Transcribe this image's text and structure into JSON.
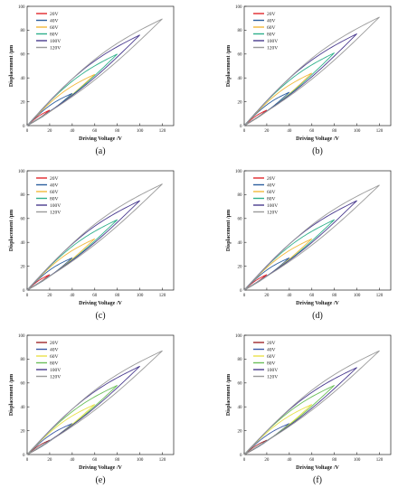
{
  "chart_data": [
    {
      "type": "line",
      "caption": "(a)",
      "xlabel": "Driving Voltage /V",
      "ylabel": "Displacement /µm",
      "xlim": [
        0,
        130
      ],
      "ylim": [
        0,
        100
      ],
      "xticks": [
        0,
        20,
        40,
        60,
        80,
        100,
        120
      ],
      "yticks": [
        0,
        20,
        40,
        60,
        80,
        100
      ],
      "legend_position": "top-left",
      "series": [
        {
          "name": "20V",
          "color": "#e0262b",
          "vmax": 20,
          "dmax": 13,
          "loop": 0.1
        },
        {
          "name": "40V",
          "color": "#2b5e9e",
          "vmax": 40,
          "dmax": 27,
          "loop": 0.12
        },
        {
          "name": "60V",
          "color": "#f2b93a",
          "vmax": 60,
          "dmax": 43,
          "loop": 0.12
        },
        {
          "name": "80V",
          "color": "#2fb08b",
          "vmax": 80,
          "dmax": 60,
          "loop": 0.12
        },
        {
          "name": "100V",
          "color": "#4a3b8f",
          "vmax": 100,
          "dmax": 76,
          "loop": 0.12
        },
        {
          "name": "120V",
          "color": "#9a9a9a",
          "vmax": 120,
          "dmax": 89.5,
          "loop": 0.12
        }
      ]
    },
    {
      "type": "line",
      "caption": "(b)",
      "xlabel": "Driving Voltage /V",
      "ylabel": "Displacement /µm",
      "xlim": [
        0,
        130
      ],
      "ylim": [
        0,
        100
      ],
      "xticks": [
        0,
        20,
        40,
        60,
        80,
        100,
        120
      ],
      "yticks": [
        0,
        20,
        40,
        60,
        80,
        100
      ],
      "legend_position": "top-left",
      "series": [
        {
          "name": "20V",
          "color": "#e0262b",
          "vmax": 20,
          "dmax": 13,
          "loop": 0.1
        },
        {
          "name": "40V",
          "color": "#2b5e9e",
          "vmax": 40,
          "dmax": 28,
          "loop": 0.12
        },
        {
          "name": "60V",
          "color": "#f2b93a",
          "vmax": 60,
          "dmax": 44,
          "loop": 0.12
        },
        {
          "name": "80V",
          "color": "#2fb08b",
          "vmax": 80,
          "dmax": 61,
          "loop": 0.12
        },
        {
          "name": "100V",
          "color": "#4a3b8f",
          "vmax": 100,
          "dmax": 77,
          "loop": 0.12
        },
        {
          "name": "120V",
          "color": "#9a9a9a",
          "vmax": 120,
          "dmax": 91,
          "loop": 0.12
        }
      ]
    },
    {
      "type": "line",
      "caption": "(c)",
      "xlabel": "Driving Voltage /V",
      "ylabel": "Displacement /µm",
      "xlim": [
        0,
        130
      ],
      "ylim": [
        0,
        100
      ],
      "xticks": [
        0,
        20,
        40,
        60,
        80,
        100,
        120
      ],
      "yticks": [
        0,
        20,
        40,
        60,
        80,
        100
      ],
      "legend_position": "top-left",
      "series": [
        {
          "name": "20V",
          "color": "#e0262b",
          "vmax": 20,
          "dmax": 13,
          "loop": 0.1
        },
        {
          "name": "40V",
          "color": "#2b5e9e",
          "vmax": 40,
          "dmax": 27,
          "loop": 0.12
        },
        {
          "name": "60V",
          "color": "#f2b93a",
          "vmax": 60,
          "dmax": 43,
          "loop": 0.12
        },
        {
          "name": "80V",
          "color": "#2fb08b",
          "vmax": 80,
          "dmax": 59,
          "loop": 0.12
        },
        {
          "name": "100V",
          "color": "#4a3b8f",
          "vmax": 100,
          "dmax": 75,
          "loop": 0.12
        },
        {
          "name": "120V",
          "color": "#9a9a9a",
          "vmax": 120,
          "dmax": 89,
          "loop": 0.12
        }
      ]
    },
    {
      "type": "line",
      "caption": "(d)",
      "xlabel": "Driving Voltage /V",
      "ylabel": "Displacement /µm",
      "xlim": [
        0,
        130
      ],
      "ylim": [
        0,
        100
      ],
      "xticks": [
        0,
        20,
        40,
        60,
        80,
        100,
        120
      ],
      "yticks": [
        0,
        20,
        40,
        60,
        80,
        100
      ],
      "legend_position": "top-left",
      "series": [
        {
          "name": "20V",
          "color": "#e0262b",
          "vmax": 20,
          "dmax": 13,
          "loop": 0.1
        },
        {
          "name": "40V",
          "color": "#2b5e9e",
          "vmax": 40,
          "dmax": 27,
          "loop": 0.12
        },
        {
          "name": "60V",
          "color": "#f2b93a",
          "vmax": 60,
          "dmax": 43,
          "loop": 0.12
        },
        {
          "name": "80V",
          "color": "#2fb08b",
          "vmax": 80,
          "dmax": 59,
          "loop": 0.12
        },
        {
          "name": "100V",
          "color": "#4a3b8f",
          "vmax": 100,
          "dmax": 75,
          "loop": 0.12
        },
        {
          "name": "120V",
          "color": "#9a9a9a",
          "vmax": 120,
          "dmax": 88,
          "loop": 0.12
        }
      ]
    },
    {
      "type": "line",
      "caption": "(e)",
      "xlabel": "Driving Voltage /V",
      "ylabel": "Displacement /µm",
      "xlim": [
        0,
        130
      ],
      "ylim": [
        0,
        100
      ],
      "xticks": [
        0,
        20,
        40,
        60,
        80,
        100,
        120
      ],
      "yticks": [
        0,
        20,
        40,
        60,
        80,
        100
      ],
      "legend_position": "top-left",
      "series": [
        {
          "name": "20V",
          "color": "#a0262b",
          "vmax": 20,
          "dmax": 12,
          "loop": 0.1
        },
        {
          "name": "40V",
          "color": "#3b5aa8",
          "vmax": 40,
          "dmax": 26,
          "loop": 0.12
        },
        {
          "name": "60V",
          "color": "#e9e24a",
          "vmax": 60,
          "dmax": 42,
          "loop": 0.12
        },
        {
          "name": "80V",
          "color": "#6bbf5a",
          "vmax": 80,
          "dmax": 58,
          "loop": 0.12
        },
        {
          "name": "100V",
          "color": "#4a3b8f",
          "vmax": 100,
          "dmax": 74,
          "loop": 0.12
        },
        {
          "name": "120V",
          "color": "#9a9a9a",
          "vmax": 120,
          "dmax": 87,
          "loop": 0.12
        }
      ]
    },
    {
      "type": "line",
      "caption": "(f)",
      "xlabel": "Driving Voltage /V",
      "ylabel": "Displacement /µm",
      "xlim": [
        0,
        130
      ],
      "ylim": [
        0,
        100
      ],
      "xticks": [
        0,
        20,
        40,
        60,
        80,
        100,
        120
      ],
      "yticks": [
        0,
        20,
        40,
        60,
        80,
        100
      ],
      "legend_position": "top-left",
      "series": [
        {
          "name": "20V",
          "color": "#a0262b",
          "vmax": 20,
          "dmax": 12,
          "loop": 0.1
        },
        {
          "name": "40V",
          "color": "#3b5aa8",
          "vmax": 40,
          "dmax": 26,
          "loop": 0.12
        },
        {
          "name": "60V",
          "color": "#e9e24a",
          "vmax": 60,
          "dmax": 42,
          "loop": 0.12
        },
        {
          "name": "80V",
          "color": "#6bbf5a",
          "vmax": 80,
          "dmax": 58,
          "loop": 0.12
        },
        {
          "name": "100V",
          "color": "#4a3b8f",
          "vmax": 100,
          "dmax": 73,
          "loop": 0.12
        },
        {
          "name": "120V",
          "color": "#9a9a9a",
          "vmax": 120,
          "dmax": 87,
          "loop": 0.12
        }
      ]
    }
  ]
}
